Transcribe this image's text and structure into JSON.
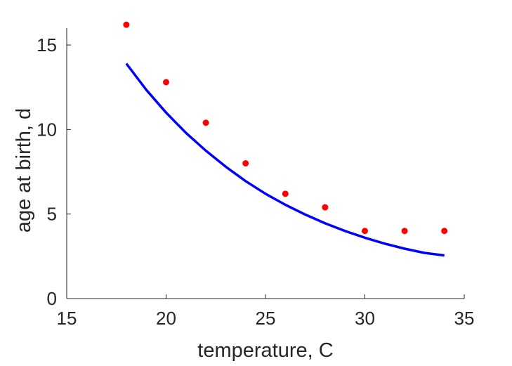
{
  "chart_data": {
    "type": "scatter",
    "title": "",
    "xlabel": "temperature, C",
    "ylabel": "age at birth, d",
    "xlim": [
      15,
      35
    ],
    "ylim": [
      0,
      16
    ],
    "xticks": [
      15,
      20,
      25,
      30,
      35
    ],
    "yticks": [
      0,
      5,
      10,
      15
    ],
    "grid": false,
    "legend": "none",
    "series": [
      {
        "kind": "points",
        "color": "#ff0000",
        "x": [
          18,
          20,
          22,
          24,
          26,
          28,
          30,
          32,
          34
        ],
        "y": [
          16.2,
          12.8,
          10.4,
          8.0,
          6.2,
          5.4,
          4.0,
          4.0,
          4.0
        ]
      },
      {
        "kind": "line",
        "color": "#0000ff",
        "x": [
          18,
          19,
          20,
          21,
          22,
          23,
          24,
          25,
          26,
          27,
          28,
          29,
          30,
          31,
          32,
          33,
          34
        ],
        "y": [
          13.9,
          12.35,
          11.0,
          9.8,
          8.75,
          7.8,
          6.95,
          6.2,
          5.55,
          4.97,
          4.45,
          4.0,
          3.6,
          3.25,
          2.95,
          2.7,
          2.55
        ]
      }
    ]
  }
}
